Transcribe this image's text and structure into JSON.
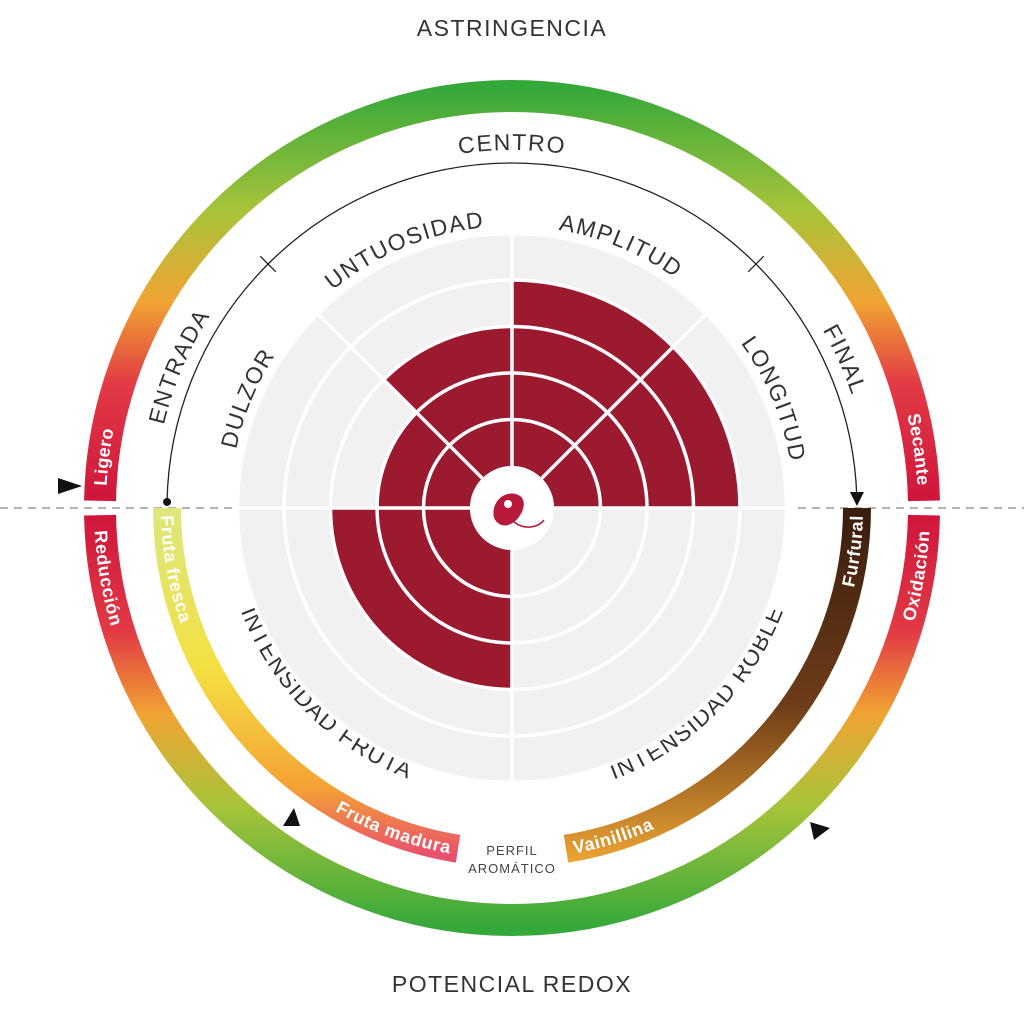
{
  "title_top": "ASTRINGENCIA",
  "title_bottom": "POTENCIAL REDOX",
  "astringency": {
    "left": "Ligero",
    "right": "Secante"
  },
  "redox": {
    "left": "Reducción",
    "right": "Oxidación"
  },
  "mouth": {
    "label": "CENTRO",
    "start": "ENTRADA",
    "end": "FINAL"
  },
  "fruit_scale": {
    "start": "Fruta fresca",
    "end": "Fruta madura"
  },
  "oak_scale": {
    "start": "Furfural",
    "end": "Vainillina"
  },
  "center_label": [
    "PERFIL",
    "AROMÁTICO"
  ],
  "segments": [
    {
      "label": "DULZOR",
      "level": 2
    },
    {
      "label": "UNTUOSIDAD",
      "level": 3
    },
    {
      "label": "AMPLITUD",
      "level": 4
    },
    {
      "label": "LONGITUD",
      "level": 4
    },
    {
      "label": "INTENSIDAD FRUTA",
      "level": 3
    },
    {
      "label": "INTENSIDAD ROBLE",
      "level": 0
    }
  ]
}
